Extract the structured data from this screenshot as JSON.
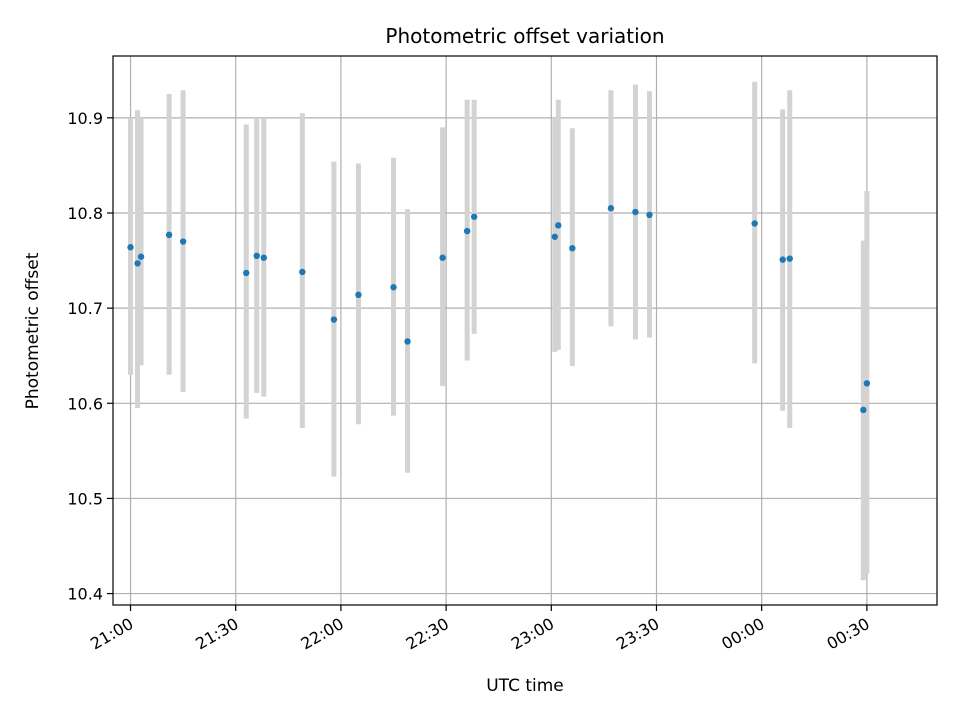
{
  "chart_data": {
    "type": "scatter",
    "title": "Photometric offset variation",
    "xlabel": "UTC time",
    "ylabel": "Photometric offset",
    "grid": true,
    "x_unit": "UTC time (HH:MM)",
    "xlim": [
      "20:55",
      "00:50"
    ],
    "ylim": [
      10.388,
      10.965
    ],
    "x_ticks": [
      "21:00",
      "21:30",
      "22:00",
      "22:30",
      "23:00",
      "23:30",
      "00:00",
      "00:30"
    ],
    "y_ticks": [
      10.4,
      10.5,
      10.6,
      10.7,
      10.8,
      10.9
    ],
    "colors": {
      "points": "#1f77b4",
      "error_bars": "#d3d3d3",
      "grid": "#b0b0b0"
    },
    "series": [
      {
        "points": [
          {
            "x": "21:00",
            "y": 10.764,
            "ylow": 10.63,
            "yhigh": 10.9
          },
          {
            "x": "21:02",
            "y": 10.747,
            "ylow": 10.595,
            "yhigh": 10.908
          },
          {
            "x": "21:03",
            "y": 10.754,
            "ylow": 10.64,
            "yhigh": 10.9
          },
          {
            "x": "21:11",
            "y": 10.777,
            "ylow": 10.63,
            "yhigh": 10.925
          },
          {
            "x": "21:15",
            "y": 10.77,
            "ylow": 10.612,
            "yhigh": 10.929
          },
          {
            "x": "21:33",
            "y": 10.737,
            "ylow": 10.584,
            "yhigh": 10.893
          },
          {
            "x": "21:36",
            "y": 10.755,
            "ylow": 10.611,
            "yhigh": 10.9
          },
          {
            "x": "21:38",
            "y": 10.753,
            "ylow": 10.607,
            "yhigh": 10.9
          },
          {
            "x": "21:49",
            "y": 10.738,
            "ylow": 10.574,
            "yhigh": 10.905
          },
          {
            "x": "21:58",
            "y": 10.688,
            "ylow": 10.523,
            "yhigh": 10.854
          },
          {
            "x": "22:05",
            "y": 10.714,
            "ylow": 10.578,
            "yhigh": 10.852
          },
          {
            "x": "22:15",
            "y": 10.722,
            "ylow": 10.587,
            "yhigh": 10.858
          },
          {
            "x": "22:19",
            "y": 10.665,
            "ylow": 10.527,
            "yhigh": 10.804
          },
          {
            "x": "22:29",
            "y": 10.753,
            "ylow": 10.618,
            "yhigh": 10.89
          },
          {
            "x": "22:36",
            "y": 10.781,
            "ylow": 10.645,
            "yhigh": 10.919
          },
          {
            "x": "22:38",
            "y": 10.796,
            "ylow": 10.673,
            "yhigh": 10.919
          },
          {
            "x": "23:01",
            "y": 10.775,
            "ylow": 10.654,
            "yhigh": 10.9
          },
          {
            "x": "23:02",
            "y": 10.787,
            "ylow": 10.656,
            "yhigh": 10.919
          },
          {
            "x": "23:06",
            "y": 10.763,
            "ylow": 10.639,
            "yhigh": 10.889
          },
          {
            "x": "23:17",
            "y": 10.805,
            "ylow": 10.681,
            "yhigh": 10.929
          },
          {
            "x": "23:24",
            "y": 10.801,
            "ylow": 10.667,
            "yhigh": 10.935
          },
          {
            "x": "23:28",
            "y": 10.798,
            "ylow": 10.669,
            "yhigh": 10.928
          },
          {
            "x": "23:58",
            "y": 10.789,
            "ylow": 10.642,
            "yhigh": 10.938
          },
          {
            "x": "00:06",
            "y": 10.751,
            "ylow": 10.592,
            "yhigh": 10.909
          },
          {
            "x": "00:08",
            "y": 10.752,
            "ylow": 10.574,
            "yhigh": 10.929
          },
          {
            "x": "00:29",
            "y": 10.593,
            "ylow": 10.414,
            "yhigh": 10.771
          },
          {
            "x": "00:30",
            "y": 10.621,
            "ylow": 10.421,
            "yhigh": 10.823
          }
        ]
      }
    ]
  }
}
